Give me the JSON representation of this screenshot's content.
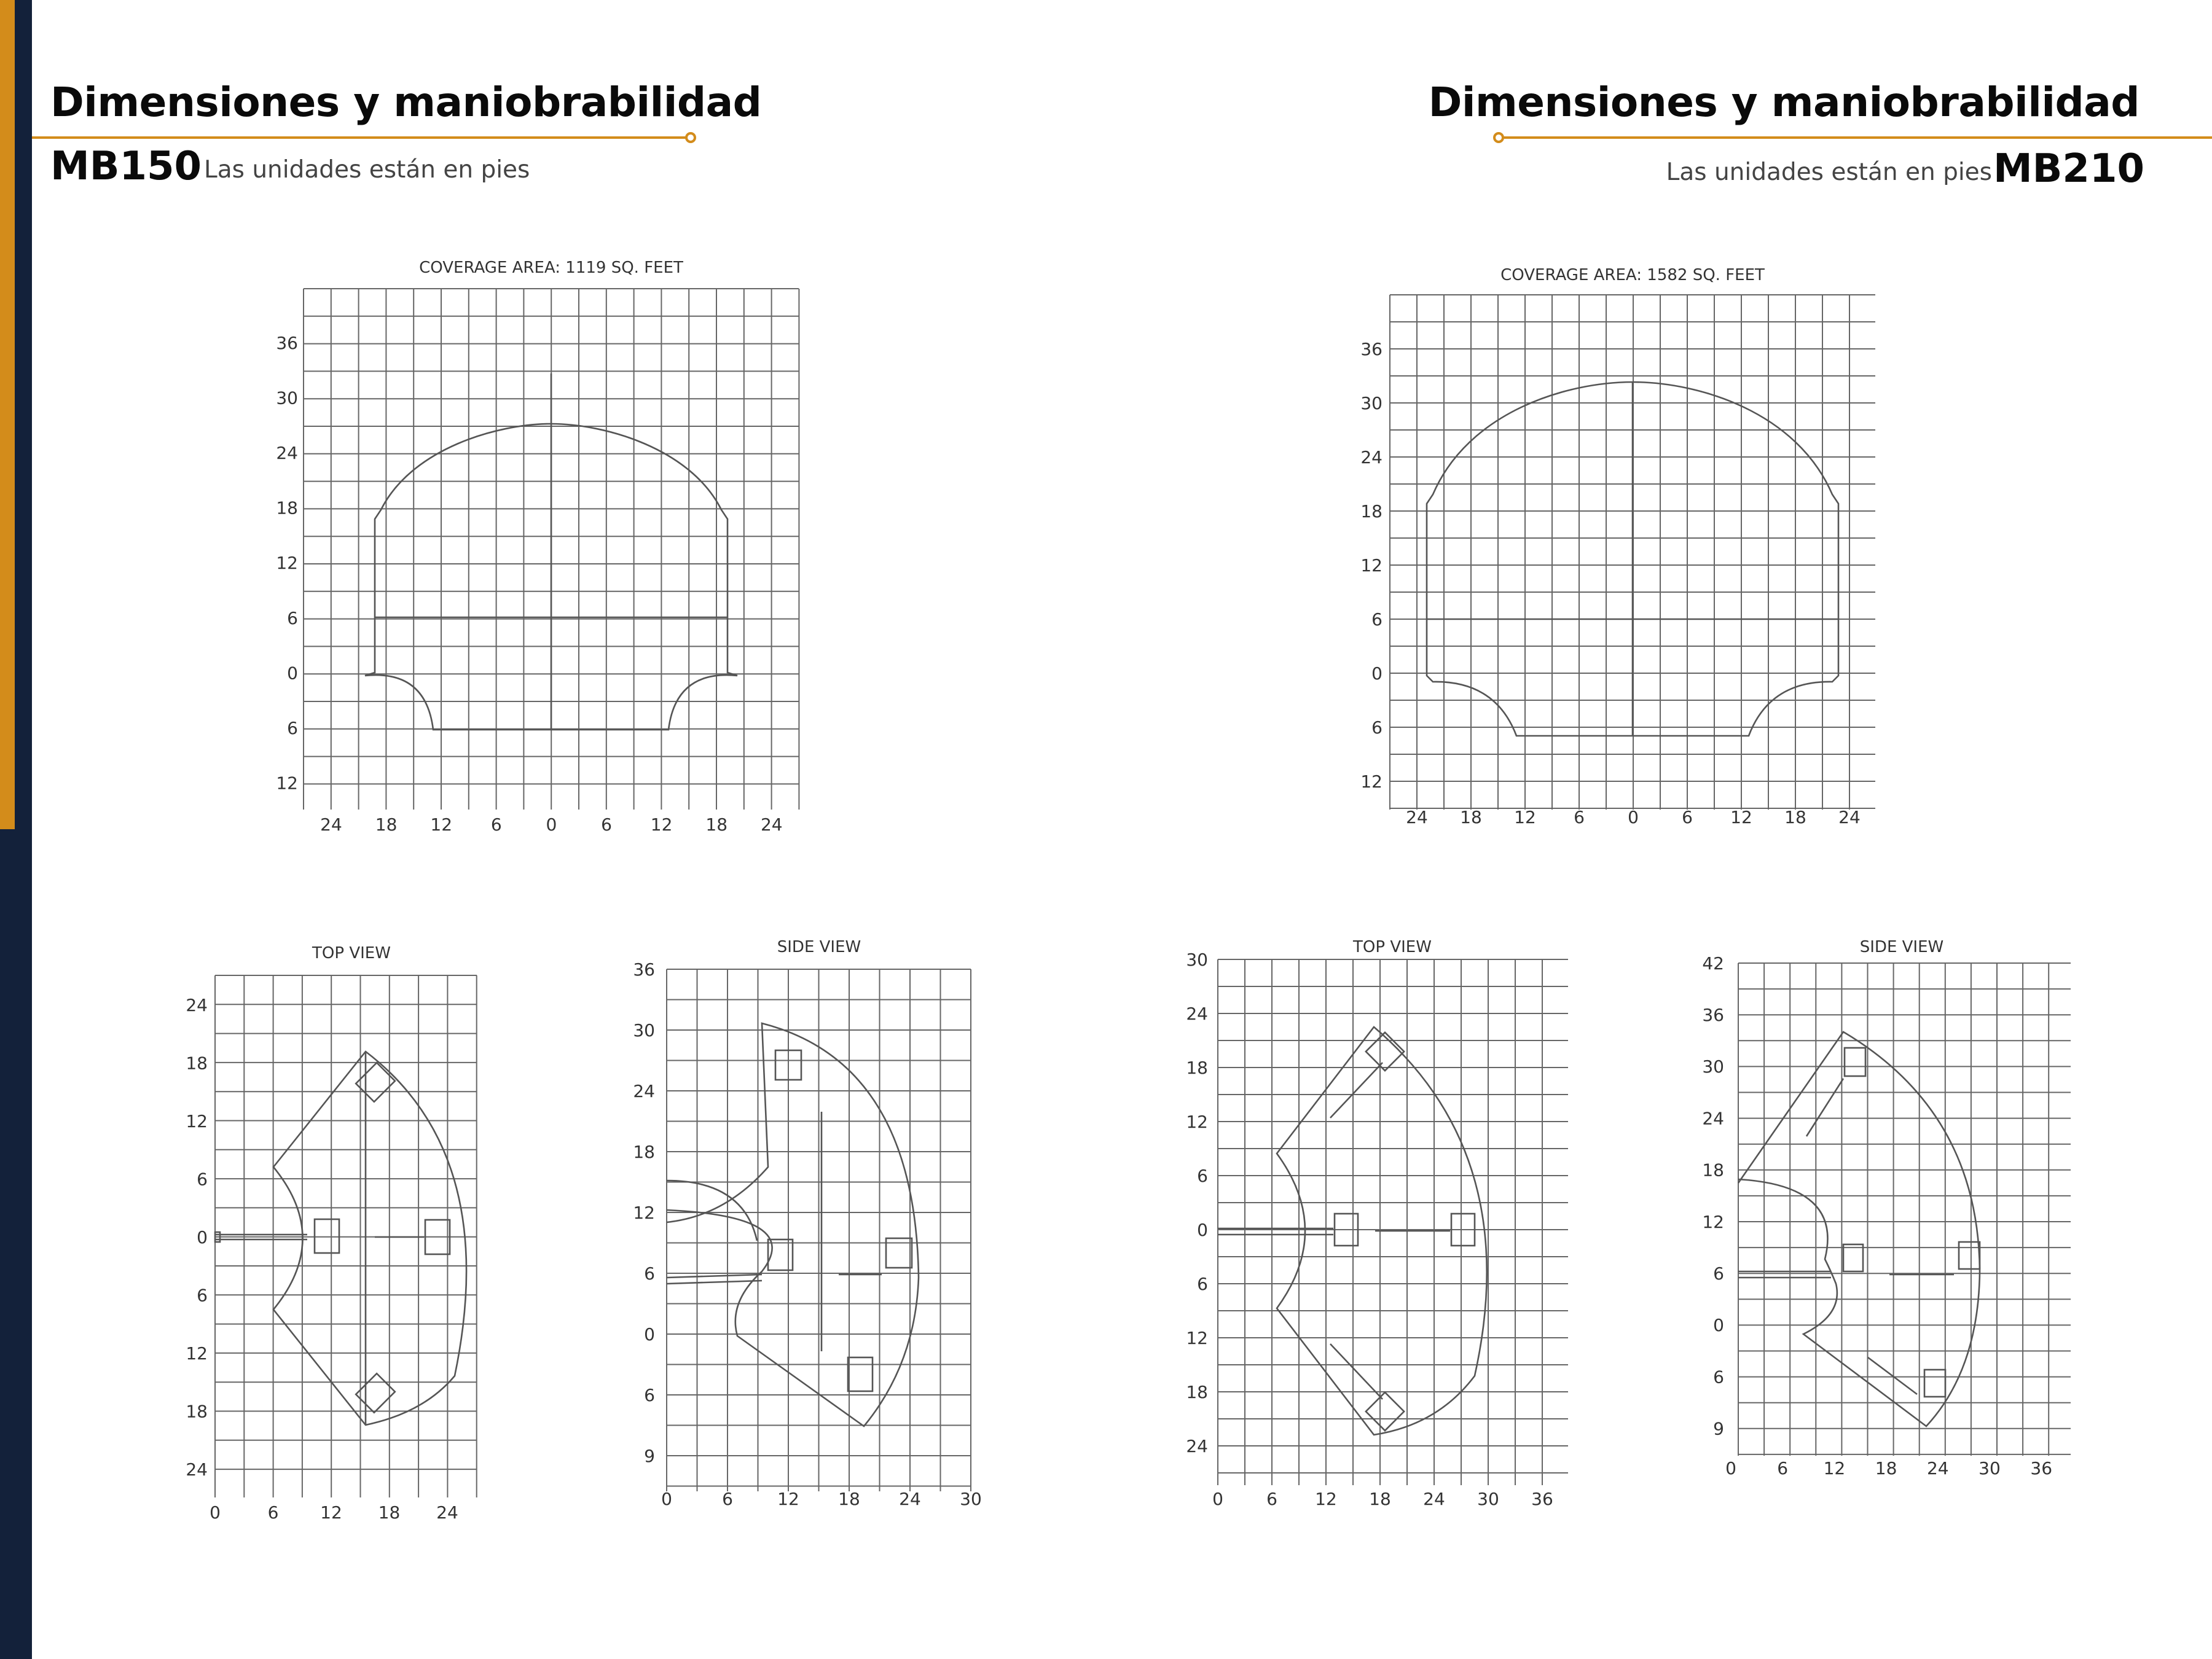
{
  "colors": {
    "navy": "#13213a",
    "gold": "#d38c1b",
    "line": "#555555"
  },
  "left": {
    "heading": "Dimensiones y maniobrabilidad",
    "model": "MB150",
    "units_note": "Las unidades están en pies",
    "coverage": {
      "title": "COVERAGE AREA: 1119 SQ. FEET",
      "y_ticks": [
        "36",
        "30",
        "24",
        "18",
        "12",
        "6",
        "0",
        "6",
        "12"
      ],
      "x_ticks": [
        "24",
        "18",
        "12",
        "6",
        "0",
        "6",
        "12",
        "18",
        "24"
      ]
    },
    "top_view": {
      "title": "TOP VIEW",
      "y_ticks": [
        "24",
        "18",
        "12",
        "6",
        "0",
        "6",
        "12",
        "18",
        "24"
      ],
      "x_ticks": [
        "0",
        "6",
        "12",
        "18",
        "24"
      ]
    },
    "side_view": {
      "title": "SIDE VIEW",
      "y_ticks": [
        "36",
        "30",
        "24",
        "18",
        "12",
        "6",
        "0",
        "6",
        "9"
      ],
      "x_ticks": [
        "0",
        "6",
        "12",
        "18",
        "24",
        "30"
      ]
    }
  },
  "right": {
    "heading": "Dimensiones y maniobrabilidad",
    "model": "MB210",
    "units_note": "Las unidades están en pies",
    "coverage": {
      "title": "COVERAGE AREA: 1582 SQ. FEET",
      "y_ticks": [
        "36",
        "30",
        "24",
        "18",
        "12",
        "6",
        "0",
        "6",
        "12"
      ],
      "x_ticks": [
        "24",
        "18",
        "12",
        "6",
        "0",
        "6",
        "12",
        "18",
        "24"
      ]
    },
    "top_view": {
      "title": "TOP VIEW",
      "y_ticks": [
        "30",
        "24",
        "18",
        "12",
        "6",
        "0",
        "6",
        "12",
        "18",
        "24"
      ],
      "x_ticks": [
        "0",
        "6",
        "12",
        "18",
        "24",
        "30",
        "36"
      ]
    },
    "side_view": {
      "title": "SIDE VIEW",
      "y_ticks": [
        "42",
        "36",
        "30",
        "24",
        "18",
        "12",
        "6",
        "0",
        "6",
        "9"
      ],
      "x_ticks": [
        "0",
        "6",
        "12",
        "18",
        "24",
        "30",
        "36"
      ]
    }
  }
}
